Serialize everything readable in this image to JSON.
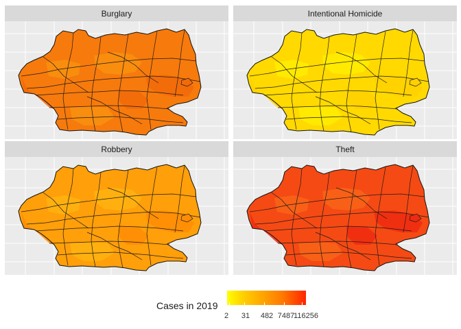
{
  "panels": [
    {
      "title": "Burglary",
      "fill": "#f77a0c",
      "hot_fill": "#f26a0a",
      "cool_fill": "#f8900f"
    },
    {
      "title": "Intentional Homicide",
      "fill": "#ffd900",
      "hot_fill": "#ffd000",
      "cool_fill": "#ffec00"
    },
    {
      "title": "Robbery",
      "fill": "#ff9f0a",
      "hot_fill": "#ff8c05",
      "cool_fill": "#ffb30f"
    },
    {
      "title": "Theft",
      "fill": "#f54a14",
      "hot_fill": "#ee2a10",
      "cool_fill": "#f86418"
    }
  ],
  "legend": {
    "title": "Cases in 2019",
    "ticks": [
      "2",
      "31",
      "482",
      "7487",
      "116256"
    ],
    "colors": {
      "low": "#ffff00",
      "high": "#ff2400"
    }
  }
}
